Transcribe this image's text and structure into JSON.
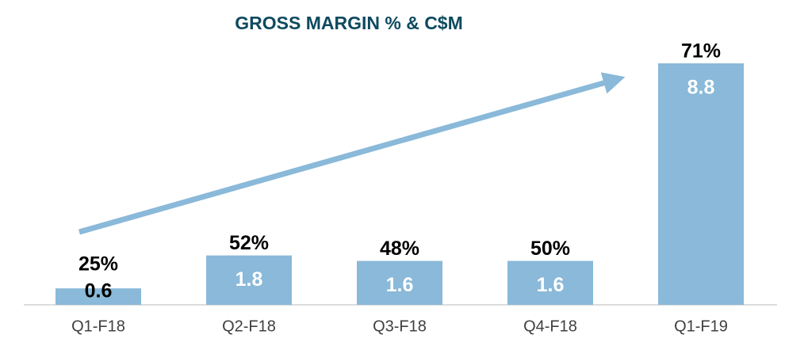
{
  "chart_data": {
    "type": "bar",
    "title": "GROSS MARGIN % & C$M",
    "categories": [
      "Q1-F18",
      "Q2-F18",
      "Q3-F18",
      "Q4-F18",
      "Q1-F19"
    ],
    "series": [
      {
        "name": "C$M",
        "color": "#8ab9d9",
        "values": [
          0.6,
          1.8,
          1.6,
          1.6,
          8.8
        ]
      },
      {
        "name": "Gross Margin %",
        "values": [
          25,
          52,
          48,
          50,
          71
        ],
        "value_labels": [
          "25%",
          "52%",
          "48%",
          "50%",
          "71%"
        ]
      }
    ]
  }
}
